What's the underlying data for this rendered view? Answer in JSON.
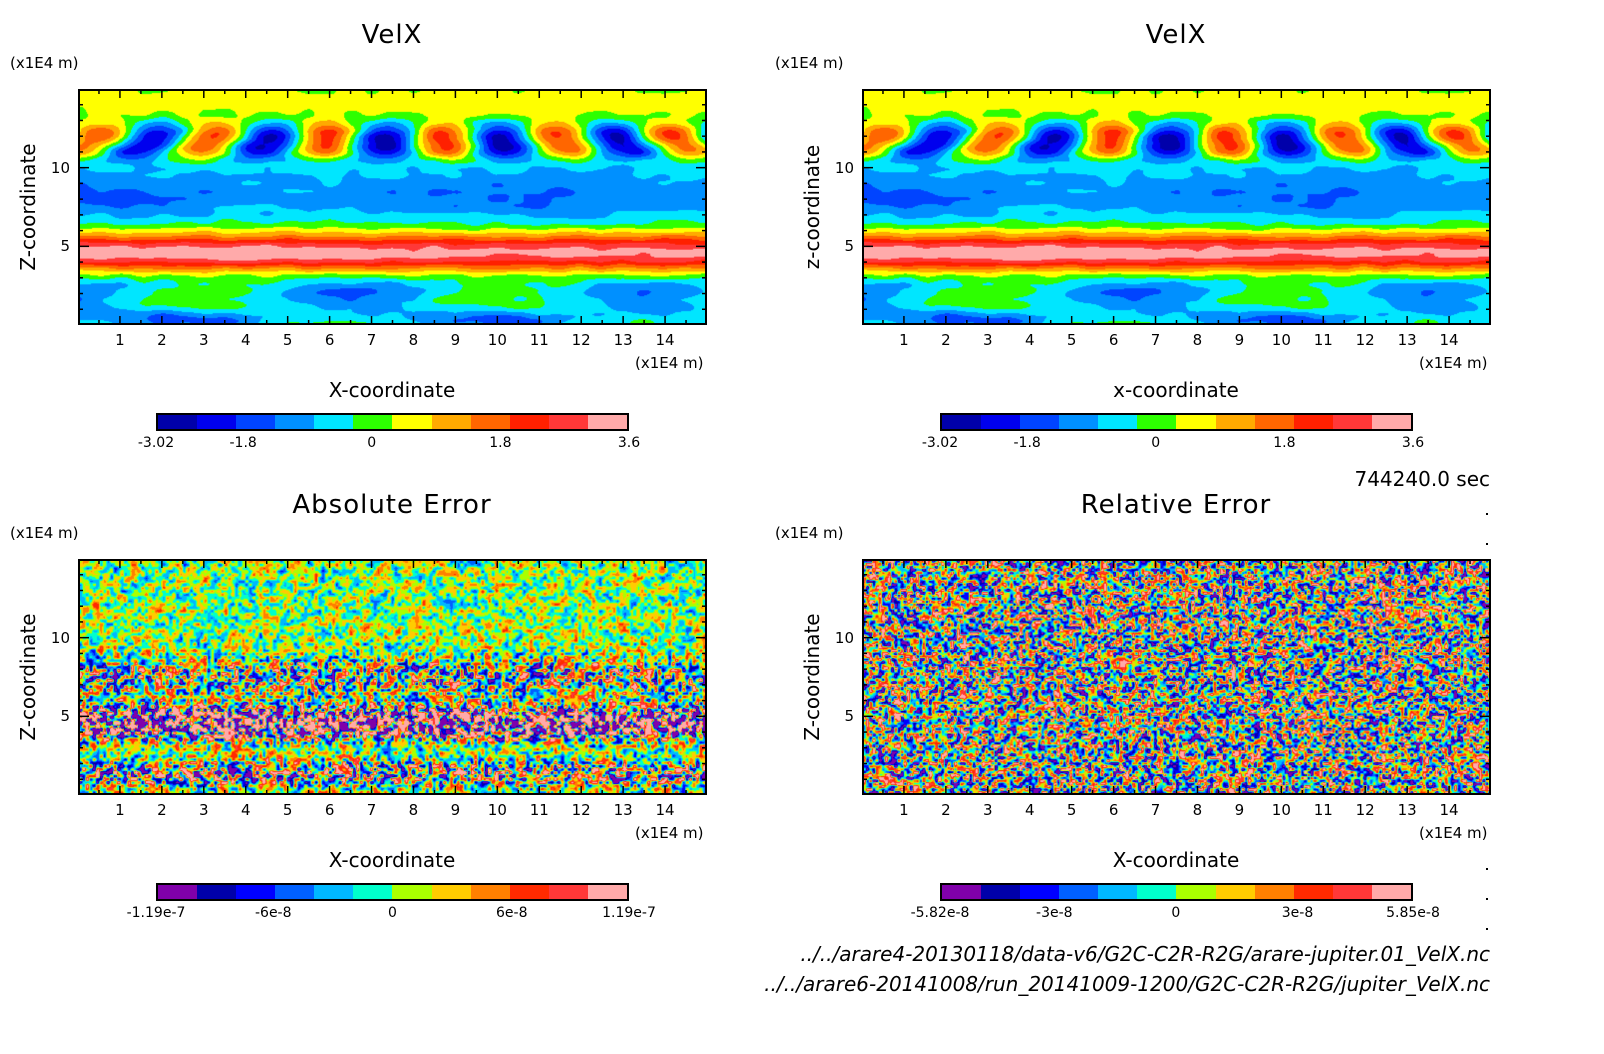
{
  "figure": {
    "time_label": "744240.0 sec",
    "files": [
      "../../arare4-20130118/data-v6/G2C-C2R-R2G/arare-jupiter.01_VelX.nc",
      "../../arare6-20141008/run_20141009-1200/G2C-C2R-R2G/jupiter_VelX.nc"
    ]
  },
  "chart_data": [
    {
      "id": "velx-left",
      "type": "heatmap",
      "title": "VelX",
      "xlabel": "X-coordinate",
      "ylabel": "Z-coordinate",
      "x_unit": "(x1E4 m)",
      "y_unit": "(x1E4 m)",
      "xlim": [
        0,
        15
      ],
      "ylim": [
        0,
        15
      ],
      "x_ticks": [
        1,
        2,
        3,
        4,
        5,
        6,
        7,
        8,
        9,
        10,
        11,
        12,
        13,
        14
      ],
      "y_ticks": [
        5,
        10
      ],
      "field": "zonal-jet",
      "colorbar": {
        "range": [
          -3.02,
          3.6
        ],
        "tick_labels": [
          "-3.02",
          "-1.8",
          "0",
          "1.8",
          "3.6"
        ],
        "tick_values": [
          -3.02,
          -1.8,
          0,
          1.8,
          3.6
        ],
        "levels": 12,
        "colors": [
          "#0000aa",
          "#0000ee",
          "#0044ff",
          "#0090ff",
          "#00e6ff",
          "#2dff00",
          "#ffff00",
          "#ffaa00",
          "#ff6600",
          "#ff2000",
          "#ff3838",
          "#ffaaaa"
        ]
      }
    },
    {
      "id": "velx-right",
      "type": "heatmap",
      "title": "VelX",
      "xlabel": "x-coordinate",
      "ylabel": "z-coordinate",
      "x_unit": "(x1E4 m)",
      "y_unit": "(x1E4 m)",
      "xlim": [
        0,
        15
      ],
      "ylim": [
        0,
        15
      ],
      "x_ticks": [
        1,
        2,
        3,
        4,
        5,
        6,
        7,
        8,
        9,
        10,
        11,
        12,
        13,
        14
      ],
      "y_ticks": [
        5,
        10
      ],
      "field": "zonal-jet",
      "colorbar": {
        "range": [
          -3.02,
          3.6
        ],
        "tick_labels": [
          "-3.02",
          "-1.8",
          "0",
          "1.8",
          "3.6"
        ],
        "tick_values": [
          -3.02,
          -1.8,
          0,
          1.8,
          3.6
        ],
        "levels": 12,
        "colors": [
          "#0000aa",
          "#0000ee",
          "#0044ff",
          "#0090ff",
          "#00e6ff",
          "#2dff00",
          "#ffff00",
          "#ffaa00",
          "#ff6600",
          "#ff2000",
          "#ff3838",
          "#ffaaaa"
        ]
      }
    },
    {
      "id": "abs-error",
      "type": "heatmap",
      "title": "Absolute Error",
      "xlabel": "X-coordinate",
      "ylabel": "Z-coordinate",
      "x_unit": "(x1E4 m)",
      "y_unit": "(x1E4 m)",
      "xlim": [
        0,
        15
      ],
      "ylim": [
        0,
        15
      ],
      "x_ticks": [
        1,
        2,
        3,
        4,
        5,
        6,
        7,
        8,
        9,
        10,
        11,
        12,
        13,
        14
      ],
      "y_ticks": [
        5,
        10
      ],
      "field": "abs-noise",
      "colorbar": {
        "range": [
          -1.19e-07,
          1.19e-07
        ],
        "tick_labels": [
          "-1.19e-7",
          "-6e-8",
          "0",
          "6e-8",
          "1.19e-7"
        ],
        "tick_values": [
          -1.19e-07,
          -6e-08,
          0,
          6e-08,
          1.19e-07
        ],
        "levels": 12,
        "colors": [
          "#8000aa",
          "#0000aa",
          "#0000ff",
          "#0060ff",
          "#00b8ff",
          "#00ffcc",
          "#aaff00",
          "#ffcc00",
          "#ff8000",
          "#ff2a00",
          "#ff3838",
          "#ffaaaa"
        ]
      }
    },
    {
      "id": "rel-error",
      "type": "heatmap",
      "title": "Relative Error",
      "xlabel": "X-coordinate",
      "ylabel": "Z-coordinate",
      "x_unit": "(x1E4 m)",
      "y_unit": "(x1E4 m)",
      "xlim": [
        0,
        15
      ],
      "ylim": [
        0,
        15
      ],
      "x_ticks": [
        1,
        2,
        3,
        4,
        5,
        6,
        7,
        8,
        9,
        10,
        11,
        12,
        13,
        14
      ],
      "y_ticks": [
        5,
        10
      ],
      "field": "rel-noise",
      "colorbar": {
        "range": [
          -5.82e-08,
          5.85e-08
        ],
        "tick_labels": [
          "-5.82e-8",
          "-3e-8",
          "0",
          "3e-8",
          "5.85e-8"
        ],
        "tick_values": [
          -5.82e-08,
          -3e-08,
          0,
          3e-08,
          5.85e-08
        ],
        "levels": 12,
        "colors": [
          "#8000aa",
          "#0000aa",
          "#0000ff",
          "#0060ff",
          "#00b8ff",
          "#00ffcc",
          "#aaff00",
          "#ffcc00",
          "#ff8000",
          "#ff2a00",
          "#ff3838",
          "#ffaaaa"
        ]
      }
    }
  ]
}
